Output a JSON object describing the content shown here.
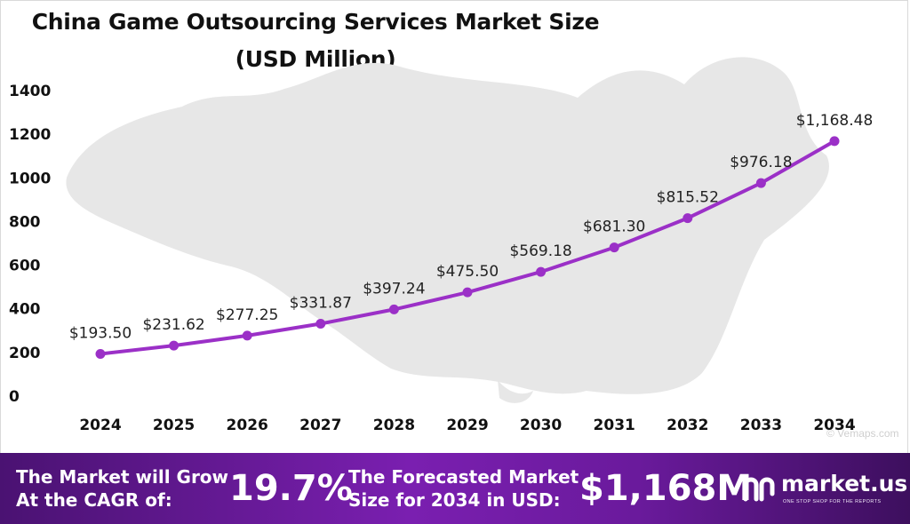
{
  "chart_data": {
    "type": "line",
    "title": "China Game Outsourcing Services Market Size",
    "subtitle": "(USD Million)",
    "categories": [
      "2024",
      "2025",
      "2026",
      "2027",
      "2028",
      "2029",
      "2030",
      "2031",
      "2032",
      "2033",
      "2034"
    ],
    "values": [
      193.5,
      231.62,
      277.25,
      331.87,
      397.24,
      475.5,
      569.18,
      681.3,
      815.52,
      976.18,
      1168.48
    ],
    "data_labels": [
      "$193.50",
      "$231.62",
      "$277.25",
      "$331.87",
      "$397.24",
      "$475.50",
      "$569.18",
      "$681.30",
      "$815.52",
      "$976.18",
      "$1,168.48"
    ],
    "y_ticks": [
      "0",
      "200",
      "400",
      "600",
      "800",
      "1000",
      "1200",
      "1400"
    ],
    "ylim": [
      0,
      1400
    ],
    "grid": false,
    "series_color": "#9b30c7"
  },
  "footer": {
    "cagr_label_line1": "The Market will Grow",
    "cagr_label_line2": "At the CAGR of:",
    "cagr_value": "19.7%",
    "forecast_label_line1": "The Forecasted Market",
    "forecast_label_line2": "Size for 2034 in USD:",
    "forecast_value": "$1,168M",
    "brand_name": "market.us",
    "brand_tagline": "ONE STOP SHOP FOR THE REPORTS",
    "logo_icon": "market-us-logo-icon"
  },
  "watermark": "© Vemaps.com"
}
